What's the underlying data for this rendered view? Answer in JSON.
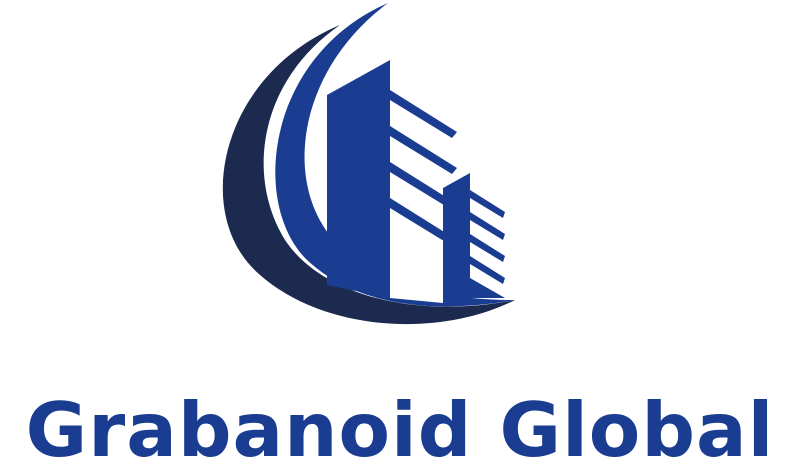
{
  "brand": {
    "name": "Grabanoid Global",
    "primary_color": "#1a3c91",
    "dark_color": "#1c2a4f",
    "logo_icon": "building-swoosh-icon"
  }
}
